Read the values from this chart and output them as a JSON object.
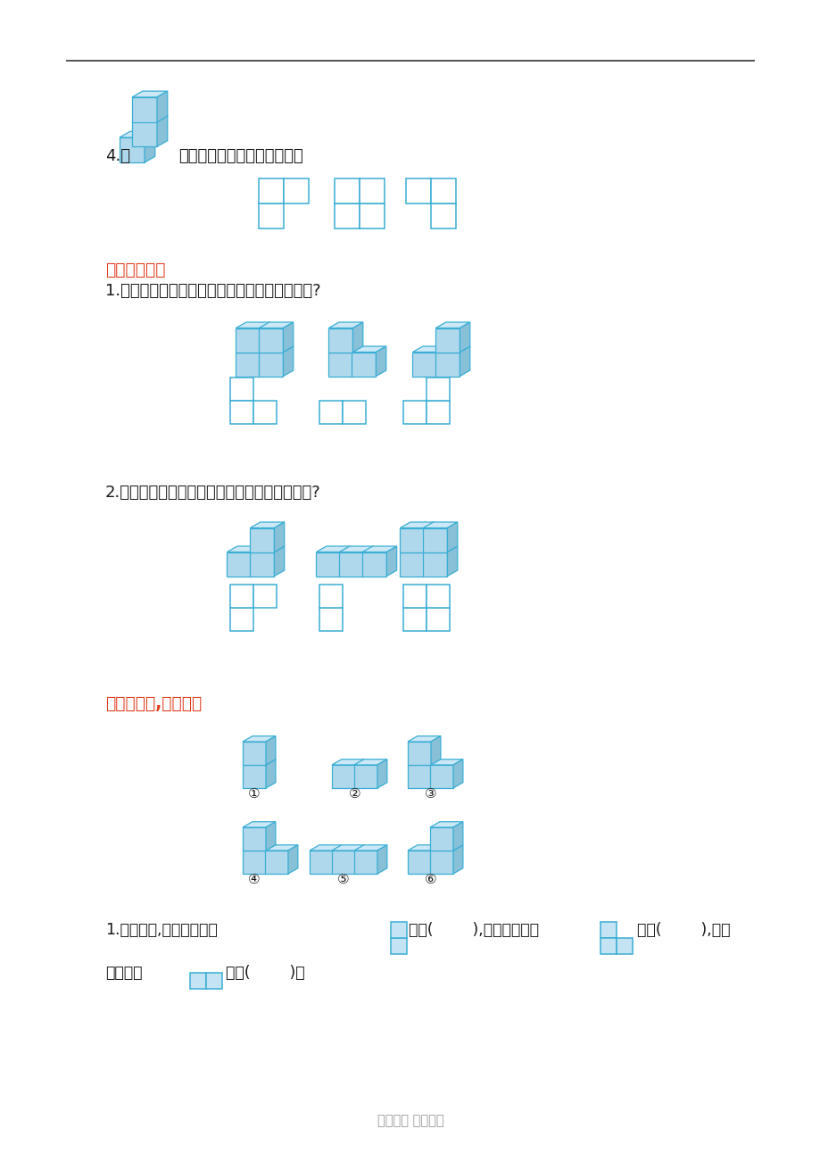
{
  "bg_color": "#ffffff",
  "blue_face": "#b0d8ec",
  "blue_top": "#cce8f6",
  "blue_right": "#88c0d8",
  "blue_edge": "#3aaed4",
  "blue_flat_fill": "#c4e4f4",
  "red_text": "#e03c1e",
  "black_text": "#1a1a1a",
  "gray_text": "#999999",
  "line_color": "#444444",
  "footer": "智汇文库 专业文档",
  "s4_label": "4.给",
  "s4_text": "从上面看到的图形涂上颜色。",
  "s5_title": "五、连线题。",
  "s5_q1": "1.下面的立体图形从上面看到的分别是什么形状?",
  "s5_q2": "2.下面的立体图形从右面看到的分别是什么形状?",
  "s6_title": "六、看一看,填一填。",
  "s6_q1a": "1.从右面看,看到的形状是",
  "s6_q1b": "的有(        ),看到的形状是",
  "s6_q1c": "的有(        ),看到",
  "s6_q1d": "的形状是",
  "s6_q1e": "的有(        )。"
}
